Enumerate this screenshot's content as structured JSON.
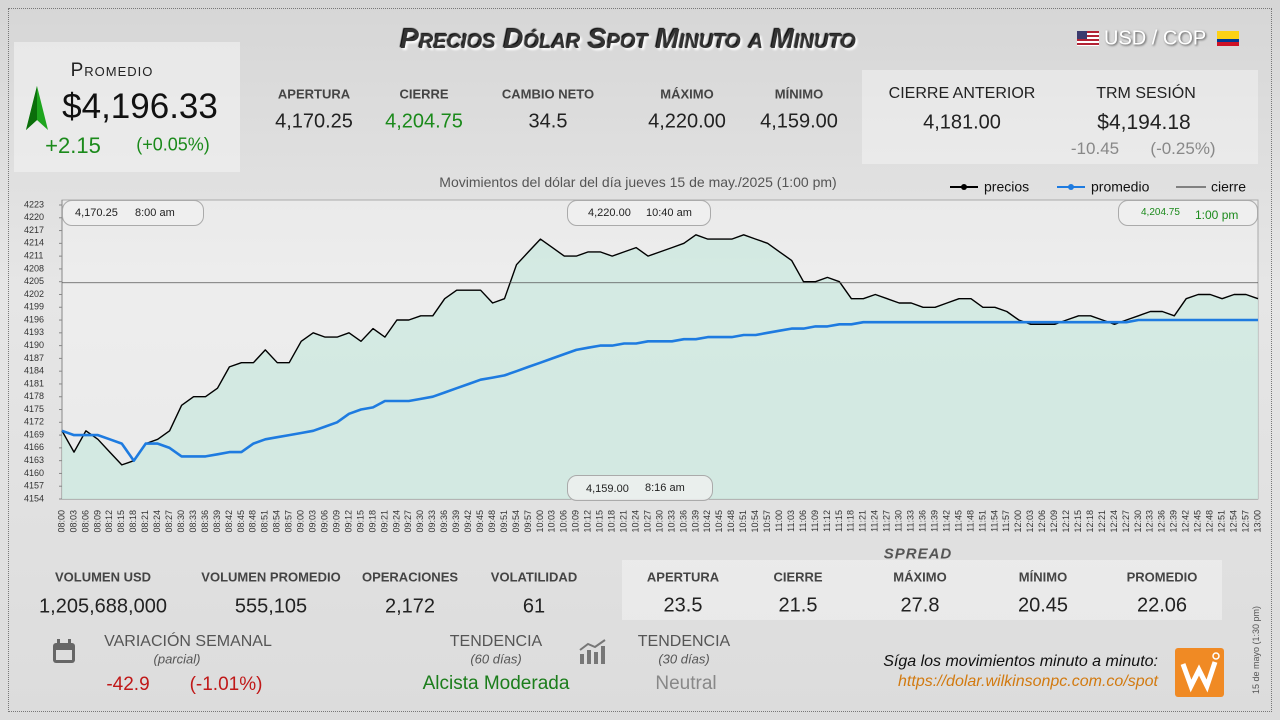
{
  "header": {
    "title": "Precios Dólar Spot Minuto a Minuto",
    "pair": "USD / COP"
  },
  "summary": {
    "label": "Promedio",
    "value": "$4,196.33",
    "change": "+2.15",
    "change_pct": "(+0.05%)"
  },
  "day_stats": [
    {
      "label": "APERTURA",
      "value": "4,170.25"
    },
    {
      "label": "CIERRE",
      "value": "4,204.75"
    },
    {
      "label": "CAMBIO NETO",
      "value": "34.5"
    },
    {
      "label": "MÁXIMO",
      "value": "4,220.00"
    },
    {
      "label": "MÍNIMO",
      "value": "4,159.00"
    }
  ],
  "previous": {
    "label": "CIERRE ANTERIOR",
    "value": "4,181.00"
  },
  "trm": {
    "label": "TRM SESIÓN",
    "value": "$4,194.18",
    "change": "-10.45",
    "change_pct": "(-0.25%)"
  },
  "chart_data": {
    "type": "line",
    "subtitle": "Movimientos del dólar del día jueves 15 de may./2025 (1:00 pm)",
    "categories": [
      "08:00",
      "08:03",
      "08:06",
      "08:09",
      "08:12",
      "08:15",
      "08:18",
      "08:21",
      "08:24",
      "08:27",
      "08:30",
      "08:33",
      "08:36",
      "08:39",
      "08:42",
      "08:45",
      "08:48",
      "08:51",
      "08:54",
      "08:57",
      "09:00",
      "09:03",
      "09:06",
      "09:09",
      "09:12",
      "09:15",
      "09:18",
      "09:21",
      "09:24",
      "09:27",
      "09:30",
      "09:33",
      "09:36",
      "09:39",
      "09:42",
      "09:45",
      "09:48",
      "09:51",
      "09:54",
      "09:57",
      "10:00",
      "10:03",
      "10:06",
      "10:09",
      "10:12",
      "10:15",
      "10:18",
      "10:21",
      "10:24",
      "10:27",
      "10:30",
      "10:33",
      "10:36",
      "10:39",
      "10:42",
      "10:45",
      "10:48",
      "10:51",
      "10:54",
      "10:57",
      "11:00",
      "11:03",
      "11:06",
      "11:09",
      "11:12",
      "11:15",
      "11:18",
      "11:21",
      "11:24",
      "11:27",
      "11:30",
      "11:33",
      "11:36",
      "11:39",
      "11:42",
      "11:45",
      "11:48",
      "11:51",
      "11:54",
      "11:57",
      "12:00",
      "12:03",
      "12:06",
      "12:09",
      "12:12",
      "12:15",
      "12:18",
      "12:21",
      "12:24",
      "12:27",
      "12:30",
      "12:33",
      "12:36",
      "12:39",
      "12:42",
      "12:45",
      "12:48",
      "12:51",
      "12:54",
      "12:57",
      "13:00"
    ],
    "series": [
      {
        "name": "precios",
        "color": "#000000",
        "values": [
          4170,
          4165,
          4170,
          4168,
          4165,
          4162,
          4163,
          4167,
          4168,
          4170,
          4176,
          4178,
          4178,
          4180,
          4185,
          4186,
          4186,
          4189,
          4186,
          4186,
          4191,
          4193,
          4192,
          4192,
          4193,
          4191,
          4194,
          4192,
          4196,
          4196,
          4197,
          4197,
          4201,
          4203,
          4203,
          4203,
          4200,
          4201,
          4209,
          4212,
          4215,
          4213,
          4211,
          4211,
          4212,
          4212,
          4211,
          4212,
          4213,
          4211,
          4212,
          4213,
          4214,
          4216,
          4215,
          4215,
          4215,
          4216,
          4215,
          4214,
          4212,
          4210,
          4205,
          4205,
          4206,
          4205,
          4201,
          4201,
          4202,
          4201,
          4200,
          4200,
          4199,
          4199,
          4200,
          4201,
          4201,
          4199,
          4199,
          4198,
          4196,
          4195,
          4195,
          4195,
          4196,
          4197,
          4197,
          4196,
          4195,
          4196,
          4197,
          4198,
          4198,
          4197,
          4201,
          4202,
          4202,
          4201,
          4202,
          4202,
          4201
        ]
      },
      {
        "name": "promedio",
        "color": "#1e7be0",
        "values": [
          4170,
          4169,
          4169,
          4169,
          4168,
          4167,
          4163,
          4167,
          4167,
          4166,
          4164,
          4164,
          4164,
          4164.5,
          4165,
          4165,
          4167,
          4168,
          4168.5,
          4169,
          4169.5,
          4170,
          4171,
          4172,
          4174,
          4175,
          4175.5,
          4177,
          4177,
          4177,
          4177.5,
          4178,
          4179,
          4180,
          4181,
          4182,
          4182.5,
          4183,
          4184,
          4185,
          4186,
          4187,
          4188,
          4189,
          4189.5,
          4190,
          4190,
          4190.5,
          4190.5,
          4191,
          4191,
          4191,
          4191.5,
          4191.5,
          4192,
          4192,
          4192,
          4192.5,
          4192.5,
          4193,
          4193.5,
          4194,
          4194,
          4194.5,
          4194.5,
          4195,
          4195,
          4195.5,
          4195.5,
          4195.5,
          4195.5,
          4195.5,
          4195.5,
          4195.5,
          4195.5,
          4195.5,
          4195.5,
          4195.5,
          4195.5,
          4195.5,
          4195.5,
          4195.5,
          4195.5,
          4195.5,
          4195.5,
          4195.5,
          4195.5,
          4195.5,
          4195.5,
          4195.5,
          4196,
          4196,
          4196,
          4196,
          4196,
          4196,
          4196,
          4196,
          4196,
          4196,
          4196
        ]
      }
    ],
    "reference_lines": [
      {
        "name": "cierre",
        "color": "#555555",
        "value": 4204.75
      }
    ],
    "ylim": [
      4154,
      4223
    ],
    "yticks": [
      4154,
      4157,
      4160,
      4163,
      4166,
      4169,
      4172,
      4175,
      4178,
      4181,
      4184,
      4187,
      4190,
      4193,
      4196,
      4199,
      4202,
      4205,
      4208,
      4211,
      4214,
      4217,
      4220,
      4223
    ],
    "annotations": [
      {
        "label": "4,170.25",
        "time": "8:00 am"
      },
      {
        "label": "4,220.00",
        "time": "10:40 am"
      },
      {
        "label": "4,204.75",
        "time": "1:00 pm"
      },
      {
        "label": "4,159.00",
        "time": "8:16 am"
      }
    ]
  },
  "volume_stats": [
    {
      "label": "VOLUMEN USD",
      "value": "1,205,688,000"
    },
    {
      "label": "VOLUMEN PROMEDIO",
      "value": "555,105"
    },
    {
      "label": "OPERACIONES",
      "value": "2,172"
    },
    {
      "label": "VOLATILIDAD",
      "value": "61"
    }
  ],
  "spread": {
    "title": "SPREAD",
    "items": [
      {
        "label": "APERTURA",
        "value": "23.5"
      },
      {
        "label": "CIERRE",
        "value": "21.5"
      },
      {
        "label": "MÁXIMO",
        "value": "27.8"
      },
      {
        "label": "MÍNIMO",
        "value": "20.45"
      },
      {
        "label": "PROMEDIO",
        "value": "22.06"
      }
    ]
  },
  "weekly": {
    "label": "VARIACIÓN SEMANAL",
    "note": "(parcial)",
    "value": "-42.9",
    "pct": "(-1.01%)"
  },
  "trend60": {
    "label": "TENDENCIA",
    "note": "(60 días)",
    "value": "Alcista Moderada"
  },
  "trend30": {
    "label": "TENDENCIA",
    "note": "(30 días)",
    "value": "Neutral"
  },
  "footer": {
    "text": "Síga los movimientos minuto a minuto:",
    "url": "https://dolar.wilkinsonpc.com.co/spot",
    "stamp": "15 de mayo (1:30 pm)"
  }
}
